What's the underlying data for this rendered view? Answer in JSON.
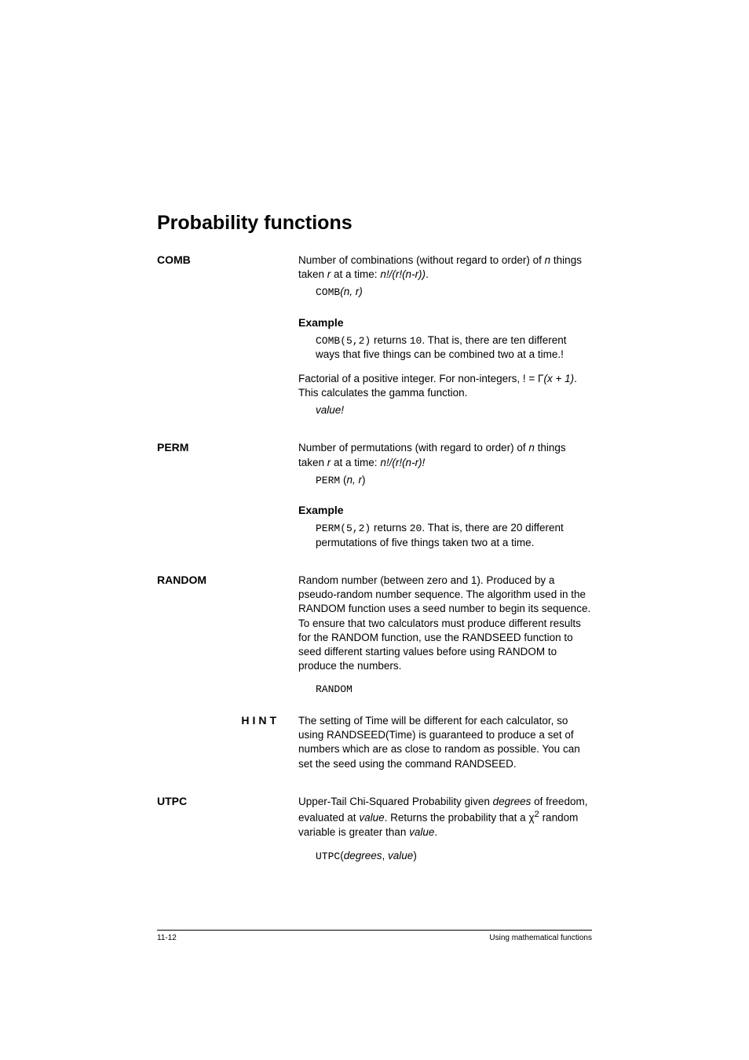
{
  "section_title": "Probability functions",
  "comb": {
    "label": "COMB",
    "desc_pre": "Number of combinations (without regard to order) of ",
    "desc_n": "n",
    "desc_mid": " things taken ",
    "desc_r": "r",
    "desc_post": " at a time: ",
    "desc_formula": "n!/(r!(n-r))",
    "desc_end": ".",
    "syntax_fn": "COMB",
    "syntax_args": "(n, r)",
    "example_label": "Example",
    "ex_call": "COMB(5,2)",
    "ex_mid": " returns ",
    "ex_result": "10",
    "ex_post": ". That is, there are ten different ways that five things can be combined two at a time.!",
    "fact_desc_pre": "Factorial of a positive integer. For non-integers,  ! = ",
    "fact_gamma": "Γ",
    "fact_arg": "(x + 1)",
    "fact_desc_post": ". This calculates the gamma function.",
    "fact_syntax": "value!"
  },
  "perm": {
    "label": "PERM",
    "desc_pre": "Number of permutations (with regard to order) of ",
    "desc_n": "n",
    "desc_mid": " things taken ",
    "desc_r": "r",
    "desc_post": " at a time: ",
    "desc_formula": "n!/(r!(n-r)!",
    "syntax_fn": "PERM",
    "syntax_args_pre": " (",
    "syntax_args": "n, r",
    "syntax_args_post": ")",
    "example_label": "Example",
    "ex_call": "PERM(5,2)",
    "ex_mid": " returns ",
    "ex_result": "20",
    "ex_post": ". That is, there are 20 different permutations of five things taken two at a time."
  },
  "random": {
    "label": "RANDOM",
    "desc": "Random number (between zero and 1). Produced by a pseudo-random number sequence. The algorithm used in the RANDOM function uses a seed number to begin its sequence. To ensure that two calculators must produce different results for the RANDOM function, use the RANDSEED function to seed different starting values before using RANDOM to produce the numbers.",
    "syntax": "RANDOM"
  },
  "hint": {
    "label": "HINT",
    "desc": "The setting of Time will be different for each calculator, so using RANDSEED(Time) is guaranteed to produce a set of numbers which are as close to random as possible. You can set the seed using the command RANDSEED."
  },
  "utpc": {
    "label": "UTPC",
    "desc_pre": "Upper-Tail Chi-Squared Probability given ",
    "desc_deg": "degrees",
    "desc_mid1": " of freedom, evaluated at ",
    "desc_val": "value",
    "desc_mid2": ". Returns the probability that a χ",
    "desc_sup": "2",
    "desc_mid3": " random variable is greater than ",
    "desc_val2": "value",
    "desc_end": ".",
    "syntax_fn": "UTPC",
    "syntax_open": "(",
    "syntax_deg": "degrees",
    "syntax_sep": ", ",
    "syntax_val": "value",
    "syntax_close": ")"
  },
  "footer": {
    "left": "11-12",
    "right": "Using mathematical functions"
  }
}
